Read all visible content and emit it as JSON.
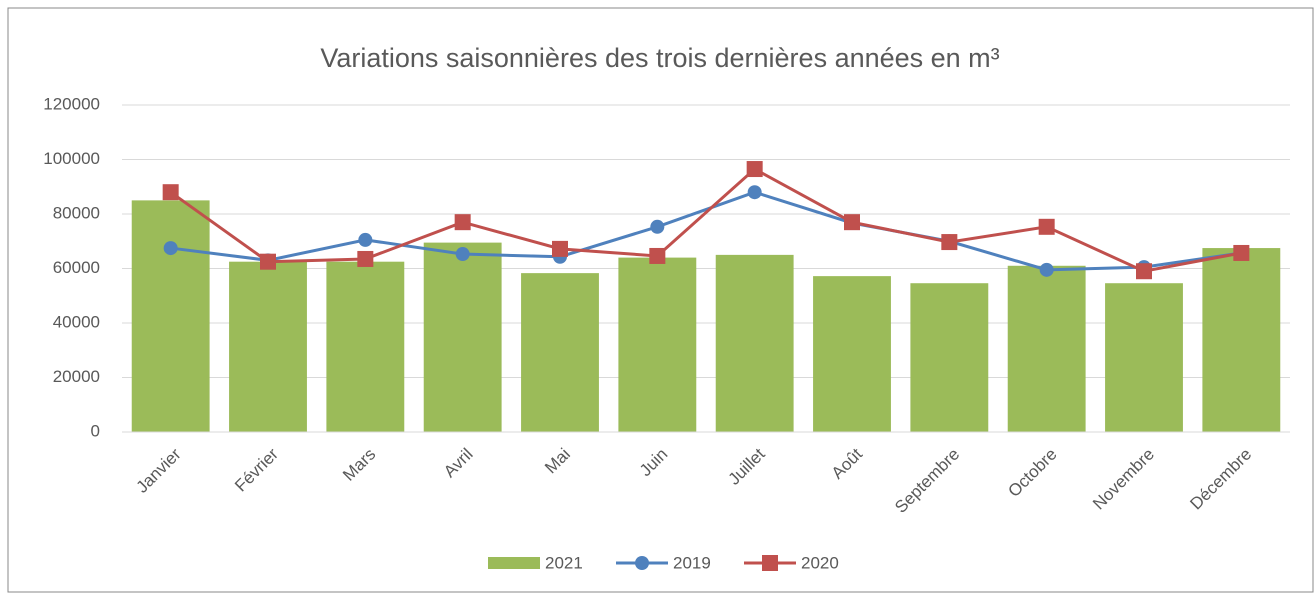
{
  "chart_data": {
    "type": "bar",
    "title": "Variations saisonnières des trois dernières années en m³",
    "categories": [
      "Janvier",
      "Février",
      "Mars",
      "Avril",
      "Mai",
      "Juin",
      "Juillet",
      "Août",
      "Septembre",
      "Octobre",
      "Novembre",
      "Décembre"
    ],
    "series": [
      {
        "name": "2021",
        "type": "bar",
        "color": "#9bbb59",
        "values": [
          85000,
          62500,
          62500,
          69500,
          58300,
          64000,
          65000,
          57200,
          54600,
          61000,
          54600,
          67500
        ]
      },
      {
        "name": "2019",
        "type": "line",
        "color": "#4f81bd",
        "values": [
          67500,
          63000,
          70500,
          65300,
          64300,
          75300,
          88000,
          76700,
          70000,
          59500,
          60500,
          65700
        ]
      },
      {
        "name": "2020",
        "type": "line",
        "color": "#c0504d",
        "values": [
          88000,
          62500,
          63500,
          77000,
          67200,
          64600,
          96500,
          77000,
          69700,
          75300,
          59000,
          65700
        ]
      }
    ],
    "ylim": [
      0,
      120000
    ],
    "yticks": [
      0,
      20000,
      40000,
      60000,
      80000,
      100000,
      120000
    ],
    "grid": true
  }
}
